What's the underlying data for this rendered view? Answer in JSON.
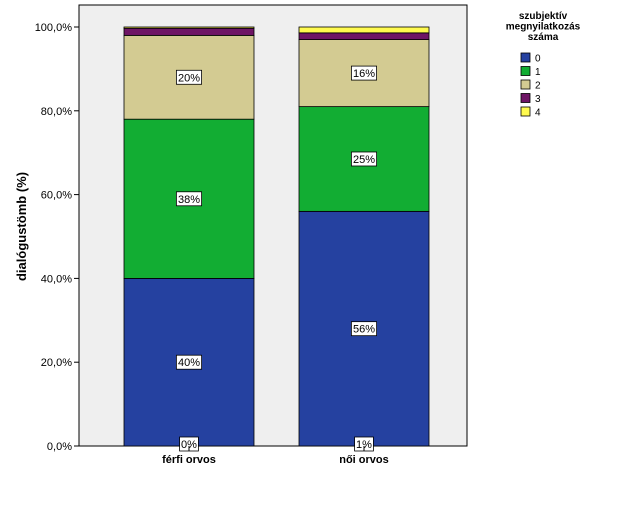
{
  "chart_data": {
    "type": "bar",
    "stacked": true,
    "percent": true,
    "title": "",
    "xlabel": "",
    "ylabel": "dialógustömb (%)",
    "ylim": [
      0,
      100
    ],
    "yticks": [
      "0,0%",
      "20,0%",
      "40,0%",
      "60,0%",
      "80,0%",
      "100,0%"
    ],
    "ytick_values": [
      0,
      20,
      40,
      60,
      80,
      100
    ],
    "categories": [
      "férfi orvos",
      "női orvos"
    ],
    "series": [
      {
        "name": "0",
        "color": "#2541A0",
        "values": [
          40,
          56
        ],
        "labels": [
          "40%",
          "56%"
        ]
      },
      {
        "name": "1",
        "color": "#12AD33",
        "values": [
          38,
          25
        ],
        "labels": [
          "38%",
          "25%"
        ]
      },
      {
        "name": "2",
        "color": "#D3CB92",
        "values": [
          20,
          16
        ],
        "labels": [
          "20%",
          "16%"
        ]
      },
      {
        "name": "3",
        "color": "#6E1565",
        "values": [
          1.7,
          1.6
        ],
        "labels": [
          "",
          ""
        ]
      },
      {
        "name": "4",
        "color": "#FFFA4F",
        "values": [
          0.3,
          1.4
        ],
        "labels": [
          "0%",
          "1%"
        ]
      }
    ],
    "legend": {
      "title_lines": [
        "szubjektív",
        "megnyilatkozás",
        "száma"
      ],
      "position": "top-right"
    },
    "plot_background": "#EFEFEF"
  }
}
